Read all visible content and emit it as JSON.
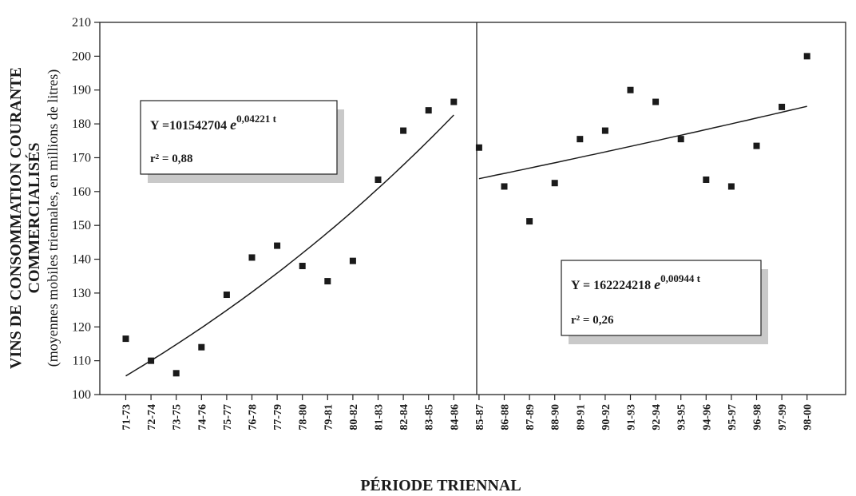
{
  "chart_data": {
    "type": "scatter",
    "title": "",
    "ylabel_line1": "VINS DE CONSOMMATION COURANTE",
    "ylabel_line2": "COMMERCIALISÉS",
    "ylabel_line3": "(moyennes mobiles triennales, en millions de litres)",
    "xlabel": "PÉRIODE TRIENNAL",
    "ylim": [
      100,
      210
    ],
    "yticks": [
      100,
      110,
      120,
      130,
      140,
      150,
      160,
      170,
      180,
      190,
      200,
      210
    ],
    "grid": false,
    "categories": [
      "71-73",
      "72-74",
      "73-75",
      "74-76",
      "75-77",
      "76-78",
      "77-79",
      "78-80",
      "79-81",
      "80-82",
      "81-83",
      "82-84",
      "83-85",
      "84-86",
      "85-87",
      "86-88",
      "87-89",
      "88-90",
      "89-91",
      "90-92",
      "91-93",
      "92-94",
      "93-95",
      "94-96",
      "95-97",
      "96-98",
      "97-99",
      "98-00"
    ],
    "panels": [
      {
        "name": "",
        "categories": [
          "71-73",
          "72-74",
          "73-75",
          "74-76",
          "75-77",
          "76-78",
          "77-79",
          "78-80",
          "79-81",
          "80-82",
          "81-83",
          "82-84",
          "83-85",
          "84-86"
        ],
        "values": [
          116.5,
          110,
          106.3,
          114,
          129.5,
          140.5,
          144,
          138,
          133.5,
          139.5,
          163.5,
          178,
          184,
          186.5
        ],
        "trend": {
          "type": "exponential",
          "start": 105.5,
          "rate": 0.04221
        },
        "equation_prefix": "Y =101542704 ",
        "equation_base": "e",
        "equation_exponent": "0,04221 t",
        "r2_label": "r² = 0,88"
      },
      {
        "name": "",
        "categories": [
          "85-87",
          "86-88",
          "87-89",
          "88-90",
          "89-91",
          "90-92",
          "91-93",
          "92-94",
          "93-95",
          "94-96",
          "95-97",
          "96-98",
          "97-99",
          "98-00"
        ],
        "values": [
          173,
          161.5,
          151.2,
          162.5,
          175.5,
          178,
          190,
          186.5,
          175.5,
          163.5,
          161.5,
          173.5,
          185,
          200
        ],
        "trend": {
          "type": "exponential",
          "start": 163.8,
          "rate": 0.00944
        },
        "equation_prefix": "Y = 162224218 ",
        "equation_base": "e",
        "equation_exponent": "0,00944 t",
        "r2_label": "r² = 0,26"
      }
    ]
  }
}
